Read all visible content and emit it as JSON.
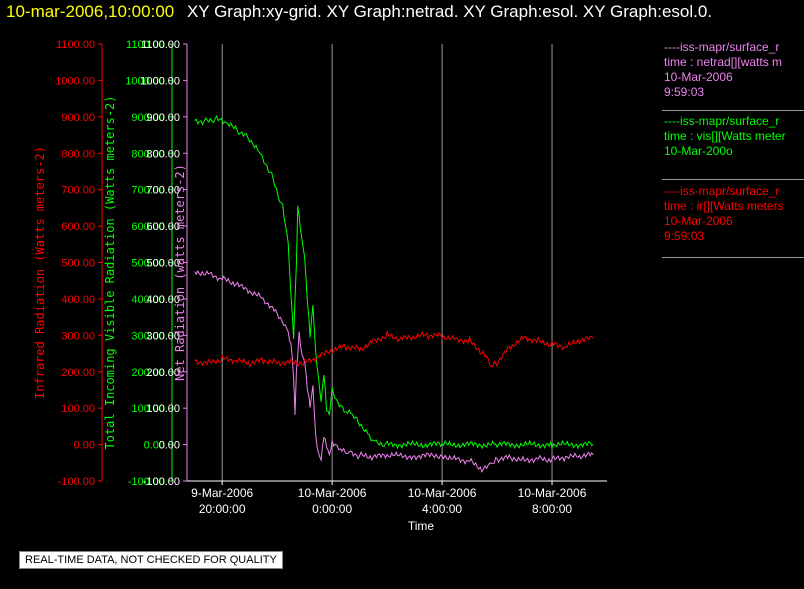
{
  "header": {
    "time": "10-mar-2006,10:00:00",
    "graphs": "XY Graph:xy-grid.  XY Graph:netrad.  XY Graph:esol.  XY Graph:esol.0."
  },
  "legend": [
    {
      "lines": [
        "----iss-mapr/surface_r",
        "time : netrad[][watts m",
        "10-Mar-2006",
        "9:59:03"
      ],
      "color": "#ee82ee"
    },
    {
      "lines": [
        "----iss-mapr/surface_r",
        "time : vis[][Watts meter",
        "10-Mar-200o"
      ],
      "color": "#00ff00"
    },
    {
      "lines": [
        "----iss-mapr/surface_r",
        "time : ir[][Watts meters",
        "10-Mar-2006",
        "9:59:03"
      ],
      "color": "#ff0000"
    }
  ],
  "disclaimer": "REAL-TIME DATA, NOT CHECKED FOR QUALITY",
  "chart_data": {
    "type": "line",
    "xlabel": "Time",
    "x_ticks": [
      {
        "hour": 0,
        "line1": "9-Mar-2006",
        "line2": "20:00:00"
      },
      {
        "hour": 4,
        "line1": "10-Mar-2006",
        "line2": "0:00:00"
      },
      {
        "hour": 8,
        "line1": "10-Mar-2006",
        "line2": "4:00:00"
      },
      {
        "hour": 12,
        "line1": "10-Mar-2006",
        "line2": "8:00:00"
      }
    ],
    "xlim_hours_since_9mar_2000": [
      -1.28,
      14.0
    ],
    "grid": "vertical",
    "axes": [
      {
        "label": "Infrared Radiation (Watts meters-2)",
        "color": "#ff0000",
        "ylim": [
          -100,
          1100
        ]
      },
      {
        "label": "Total Incoming Visible Radiation (Watts meters-2)",
        "color": "#00ff00",
        "ylim": [
          -100,
          1100
        ]
      },
      {
        "label": "Net Radiation (watts meters-2)",
        "color": "#ee82ee",
        "ylim": [
          -100,
          1100
        ]
      }
    ],
    "y_ticks": [
      "-100.00",
      "0.00",
      "100.00",
      "200.00",
      "300.00",
      "400.00",
      "500.00",
      "600.00",
      "700.00",
      "800.00",
      "900.00",
      "1000.00",
      "1100.00"
    ],
    "series": [
      {
        "name": "vis",
        "color": "#00ff00",
        "points": [
          [
            -1,
            890
          ],
          [
            -0.6,
            888
          ],
          [
            -0.2,
            893
          ],
          [
            0.2,
            880
          ],
          [
            0.6,
            860
          ],
          [
            1.0,
            840
          ],
          [
            1.4,
            800
          ],
          [
            1.8,
            740
          ],
          [
            2.2,
            650
          ],
          [
            2.4,
            550
          ],
          [
            2.5,
            420
          ],
          [
            2.6,
            300
          ],
          [
            2.7,
            500
          ],
          [
            2.75,
            650
          ],
          [
            2.8,
            620
          ],
          [
            2.9,
            560
          ],
          [
            3.0,
            520
          ],
          [
            3.1,
            400
          ],
          [
            3.2,
            300
          ],
          [
            3.3,
            380
          ],
          [
            3.4,
            250
          ],
          [
            3.5,
            180
          ],
          [
            3.6,
            120
          ],
          [
            3.7,
            200
          ],
          [
            3.8,
            100
          ],
          [
            3.9,
            80
          ],
          [
            4.0,
            150
          ],
          [
            4.2,
            110
          ],
          [
            4.5,
            90
          ],
          [
            4.8,
            80
          ],
          [
            5.0,
            60
          ],
          [
            5.3,
            30
          ],
          [
            5.6,
            5
          ],
          [
            6,
            0
          ],
          [
            8,
            0
          ],
          [
            10,
            0
          ],
          [
            12,
            0
          ],
          [
            13.5,
            0
          ]
        ]
      },
      {
        "name": "netrad",
        "color": "#ee82ee",
        "points": [
          [
            -1,
            475
          ],
          [
            -0.5,
            470
          ],
          [
            0,
            455
          ],
          [
            0.5,
            440
          ],
          [
            1.0,
            420
          ],
          [
            1.5,
            400
          ],
          [
            2.0,
            360
          ],
          [
            2.3,
            330
          ],
          [
            2.5,
            280
          ],
          [
            2.6,
            180
          ],
          [
            2.65,
            80
          ],
          [
            2.7,
            200
          ],
          [
            2.8,
            310
          ],
          [
            2.9,
            250
          ],
          [
            3.0,
            230
          ],
          [
            3.1,
            150
          ],
          [
            3.2,
            100
          ],
          [
            3.3,
            160
          ],
          [
            3.4,
            30
          ],
          [
            3.5,
            -20
          ],
          [
            3.6,
            -40
          ],
          [
            3.7,
            20
          ],
          [
            3.8,
            -10
          ],
          [
            3.9,
            -30
          ],
          [
            4.0,
            10
          ],
          [
            4.3,
            -10
          ],
          [
            4.6,
            -20
          ],
          [
            5.0,
            -30
          ],
          [
            5.5,
            -35
          ],
          [
            6,
            -30
          ],
          [
            7,
            -32
          ],
          [
            8,
            -30
          ],
          [
            8.5,
            -38
          ],
          [
            9,
            -45
          ],
          [
            9.5,
            -70
          ],
          [
            9.8,
            -55
          ],
          [
            10,
            -40
          ],
          [
            10.5,
            -35
          ],
          [
            11,
            -42
          ],
          [
            11.5,
            -38
          ],
          [
            12,
            -42
          ],
          [
            12.5,
            -36
          ],
          [
            13,
            -32
          ],
          [
            13.5,
            -28
          ]
        ]
      },
      {
        "name": "ir",
        "color": "#ff0000",
        "points": [
          [
            -1,
            230
          ],
          [
            -0.5,
            225
          ],
          [
            0,
            235
          ],
          [
            0.5,
            230
          ],
          [
            1,
            222
          ],
          [
            1.5,
            232
          ],
          [
            2,
            225
          ],
          [
            2.5,
            228
          ],
          [
            3,
            224
          ],
          [
            3.5,
            240
          ],
          [
            4,
            258
          ],
          [
            4.5,
            270
          ],
          [
            5,
            262
          ],
          [
            5.5,
            285
          ],
          [
            6,
            300
          ],
          [
            6.5,
            290
          ],
          [
            7,
            295
          ],
          [
            7.5,
            300
          ],
          [
            8,
            298
          ],
          [
            8.5,
            290
          ],
          [
            9,
            285
          ],
          [
            9.5,
            250
          ],
          [
            9.8,
            215
          ],
          [
            10,
            225
          ],
          [
            10.5,
            270
          ],
          [
            11,
            295
          ],
          [
            11.5,
            285
          ],
          [
            12,
            275
          ],
          [
            12.5,
            268
          ],
          [
            13,
            285
          ],
          [
            13.5,
            292
          ]
        ]
      }
    ]
  }
}
